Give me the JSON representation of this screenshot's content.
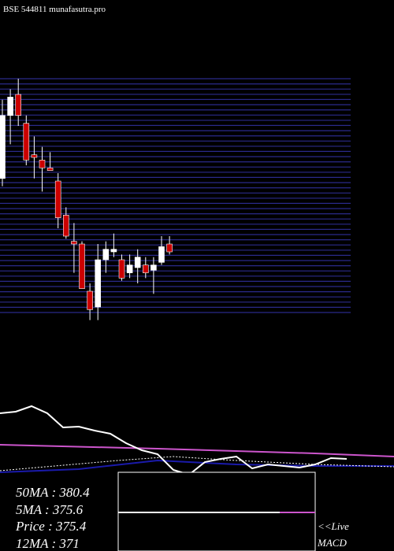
{
  "chart_data": {
    "type": "candlestick",
    "title": "BSE 544811 munafasutra.pro",
    "open": [
      402,
      426,
      434,
      423,
      411,
      409,
      406,
      401,
      388,
      378,
      377,
      359,
      353,
      371,
      374,
      371,
      366,
      368,
      369,
      367,
      370,
      377
    ],
    "high": [
      432,
      436,
      440,
      426,
      418,
      414,
      412,
      404,
      391,
      385,
      378,
      362,
      377,
      378,
      381,
      373,
      373,
      375,
      372,
      372,
      380,
      380
    ],
    "low": [
      399,
      415,
      422,
      407,
      402,
      397,
      405,
      383,
      379,
      366,
      360,
      348,
      348,
      366,
      372,
      363,
      364,
      362,
      364,
      358,
      369,
      373
    ],
    "close": [
      426,
      433,
      426,
      409,
      410,
      406,
      405,
      387,
      380,
      377,
      360,
      352,
      371,
      375,
      375,
      364,
      369,
      372,
      366,
      369,
      376,
      374
    ],
    "up_color": "#ffffff",
    "down_color": "#cc0000",
    "ylim": [
      350,
      440
    ],
    "annotations": [
      "50MA : 380.4",
      "5MA : 375.6",
      "Price  : 375.4",
      "12MA : 371"
    ],
    "live_label": "<<Live",
    "macd_label": "MACD"
  }
}
